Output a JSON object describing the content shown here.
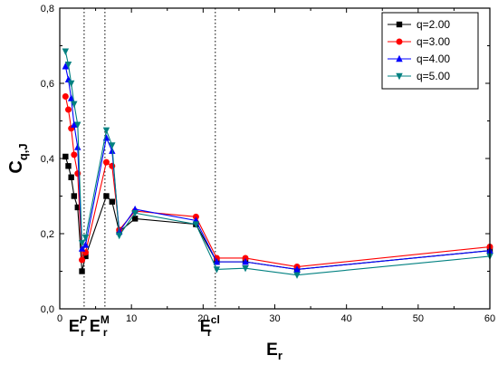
{
  "chart_data": {
    "type": "line",
    "xlabel": "E",
    "xlabel_sub": "r",
    "ylabel": "C",
    "ylabel_sub": "q,J",
    "xlim": [
      0,
      60
    ],
    "ylim": [
      0,
      0.8
    ],
    "x_ticks": [
      0,
      10,
      20,
      30,
      40,
      50,
      60
    ],
    "y_ticks": [
      0,
      0.2,
      0.4,
      0.6,
      0.8
    ],
    "x_tick_labels": [
      "0",
      "10",
      "20",
      "30",
      "40",
      "50",
      "60"
    ],
    "y_tick_labels": [
      "0,0",
      "0,2",
      "0,4",
      "0,6",
      "0,8"
    ],
    "grid": false,
    "legend_position": "top-right",
    "reference_lines": [
      {
        "x": 3.4,
        "label": "E",
        "sub": "r",
        "sup": "P"
      },
      {
        "x": 6.3,
        "label": "E",
        "sub": "r",
        "sup": "M"
      },
      {
        "x": 21.7,
        "label": "E",
        "sub": "r",
        "sup": "cl"
      }
    ],
    "series": [
      {
        "name": "q=2.00",
        "color": "#000000",
        "marker": "square",
        "x": [
          0.8,
          1.2,
          1.6,
          2.0,
          2.5,
          3.1,
          3.6,
          6.5,
          7.3,
          8.3,
          10.5,
          19.0,
          21.9,
          25.9,
          33.1,
          60.0
        ],
        "y": [
          0.405,
          0.38,
          0.35,
          0.3,
          0.27,
          0.1,
          0.14,
          0.3,
          0.285,
          0.205,
          0.24,
          0.225,
          0.125,
          0.125,
          0.105,
          0.155
        ]
      },
      {
        "name": "q=3.00",
        "color": "#ff0000",
        "marker": "circle",
        "x": [
          0.8,
          1.2,
          1.6,
          2.0,
          2.5,
          3.1,
          3.6,
          6.5,
          7.3,
          8.3,
          10.5,
          19.0,
          21.9,
          25.9,
          33.1,
          60.0
        ],
        "y": [
          0.565,
          0.53,
          0.48,
          0.41,
          0.36,
          0.13,
          0.15,
          0.39,
          0.38,
          0.21,
          0.26,
          0.245,
          0.135,
          0.135,
          0.112,
          0.165
        ]
      },
      {
        "name": "q=4.00",
        "color": "#0000ff",
        "marker": "triangle-up",
        "x": [
          0.8,
          1.2,
          1.6,
          2.0,
          2.5,
          3.1,
          3.6,
          6.5,
          7.3,
          8.3,
          10.5,
          19.0,
          21.9,
          25.9,
          33.1,
          60.0
        ],
        "y": [
          0.645,
          0.61,
          0.56,
          0.49,
          0.43,
          0.16,
          0.17,
          0.455,
          0.42,
          0.205,
          0.265,
          0.235,
          0.125,
          0.125,
          0.105,
          0.155
        ]
      },
      {
        "name": "q=5.00",
        "color": "#008080",
        "marker": "triangle-down",
        "x": [
          0.8,
          1.2,
          1.6,
          2.0,
          2.5,
          3.1,
          3.6,
          6.5,
          7.3,
          8.3,
          10.5,
          19.0,
          21.9,
          25.9,
          33.1,
          60.0
        ],
        "y": [
          0.685,
          0.65,
          0.6,
          0.545,
          0.49,
          0.175,
          0.19,
          0.475,
          0.435,
          0.195,
          0.255,
          0.225,
          0.105,
          0.108,
          0.09,
          0.14
        ]
      }
    ]
  }
}
